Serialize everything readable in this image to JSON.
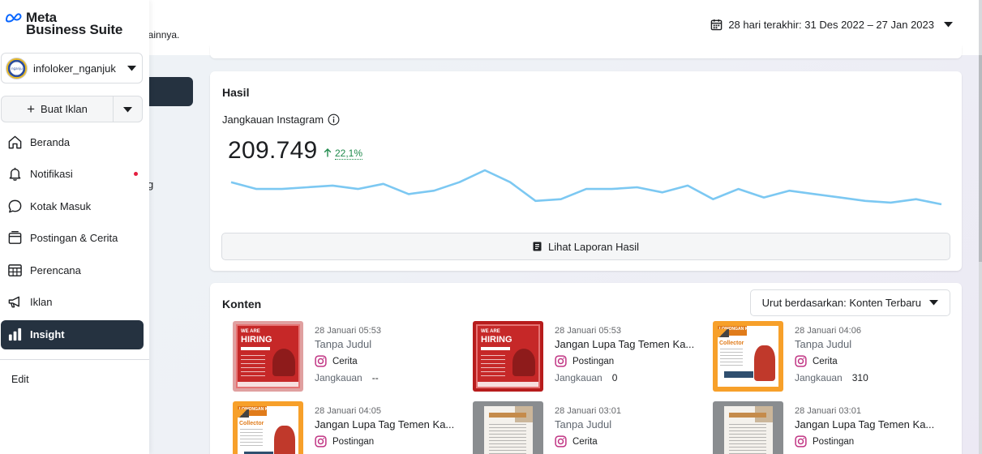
{
  "header": {
    "subtitle_fragment": "n lainnya.",
    "date_range": "28 hari terakhir: 31 Des 2022 – 27 Jan 2023",
    "calendar_icon": "calendar-icon"
  },
  "sidebar": {
    "logo": {
      "line1": "Meta",
      "line2": "Business Suite"
    },
    "account": {
      "name": "infoloker_nganjuk",
      "avatar_text": "nganjuk"
    },
    "create_button": {
      "label": "Buat Iklan"
    },
    "items": [
      {
        "label": "Beranda",
        "icon": "home-icon"
      },
      {
        "label": "Notifikasi",
        "icon": "bell-icon"
      },
      {
        "label": "Kotak Masuk",
        "icon": "chat-bubble-icon"
      },
      {
        "label": "Postingan & Cerita",
        "icon": "posts-icon"
      },
      {
        "label": "Perencana",
        "icon": "calendar-grid-icon"
      },
      {
        "label": "Iklan",
        "icon": "megaphone-icon"
      },
      {
        "label": "Insight",
        "icon": "bar-chart-icon"
      }
    ],
    "edit_label": "Edit"
  },
  "background_fragment": "g",
  "results": {
    "title": "Hasil",
    "metric_label": "Jangkauan Instagram",
    "metric_value": "209.749",
    "metric_change": "22,1%",
    "report_button": "Lihat Laporan Hasil"
  },
  "chart_data": {
    "type": "line",
    "title": "",
    "xlabel": "",
    "ylabel": "",
    "series": [
      {
        "values": [
          34,
          30,
          30,
          31,
          32,
          30,
          33,
          27,
          29,
          34,
          41,
          34,
          23,
          24,
          30,
          30,
          31,
          28,
          32,
          24,
          30,
          25,
          29,
          27,
          25,
          23,
          22,
          24,
          21
        ]
      }
    ],
    "grid": false
  },
  "content": {
    "title": "Konten",
    "sort_label": "Urut berdasarkan: Konten Terbaru",
    "reach_label": "Jangkauan",
    "posts": [
      {
        "date": "28 Januari 05:53",
        "title": "Tanpa Judul",
        "type": "Cerita",
        "reach": "--",
        "thumb": "red",
        "dim": true,
        "thumb_text1": "WE ARE",
        "thumb_text2": "HIRING"
      },
      {
        "date": "28 Januari 05:53",
        "title": "Jangan Lupa Tag Temen Ka...",
        "type": "Postingan",
        "reach": "0",
        "thumb": "red",
        "dim": false,
        "thumb_text1": "WE ARE",
        "thumb_text2": "HIRING"
      },
      {
        "date": "28 Januari 04:06",
        "title": "Tanpa Judul",
        "type": "Cerita",
        "reach": "310",
        "thumb": "orange",
        "dim": true,
        "thumb_text1": "LOWONGAN KERJA",
        "thumb_text2": "Collector"
      },
      {
        "date": "28 Januari 04:05",
        "title": "Jangan Lupa Tag Temen Ka...",
        "type": "Postingan",
        "reach": "",
        "thumb": "orange",
        "dim": false,
        "thumb_text1": "LOWONGAN KERJA",
        "thumb_text2": "Collector"
      },
      {
        "date": "28 Januari 03:01",
        "title": "Tanpa Judul",
        "type": "Cerita",
        "reach": "",
        "thumb": "doc",
        "dim": true
      },
      {
        "date": "28 Januari 03:01",
        "title": "Jangan Lupa Tag Temen Ka...",
        "type": "Postingan",
        "reach": "",
        "thumb": "doc",
        "dim": false
      }
    ]
  },
  "colors": {
    "sidebar_active": "#253240",
    "chart_line": "#7cc8f2",
    "positive_change": "#1f8a4c",
    "notification_dot": "#e41e3f",
    "instagram": "#c13584"
  }
}
